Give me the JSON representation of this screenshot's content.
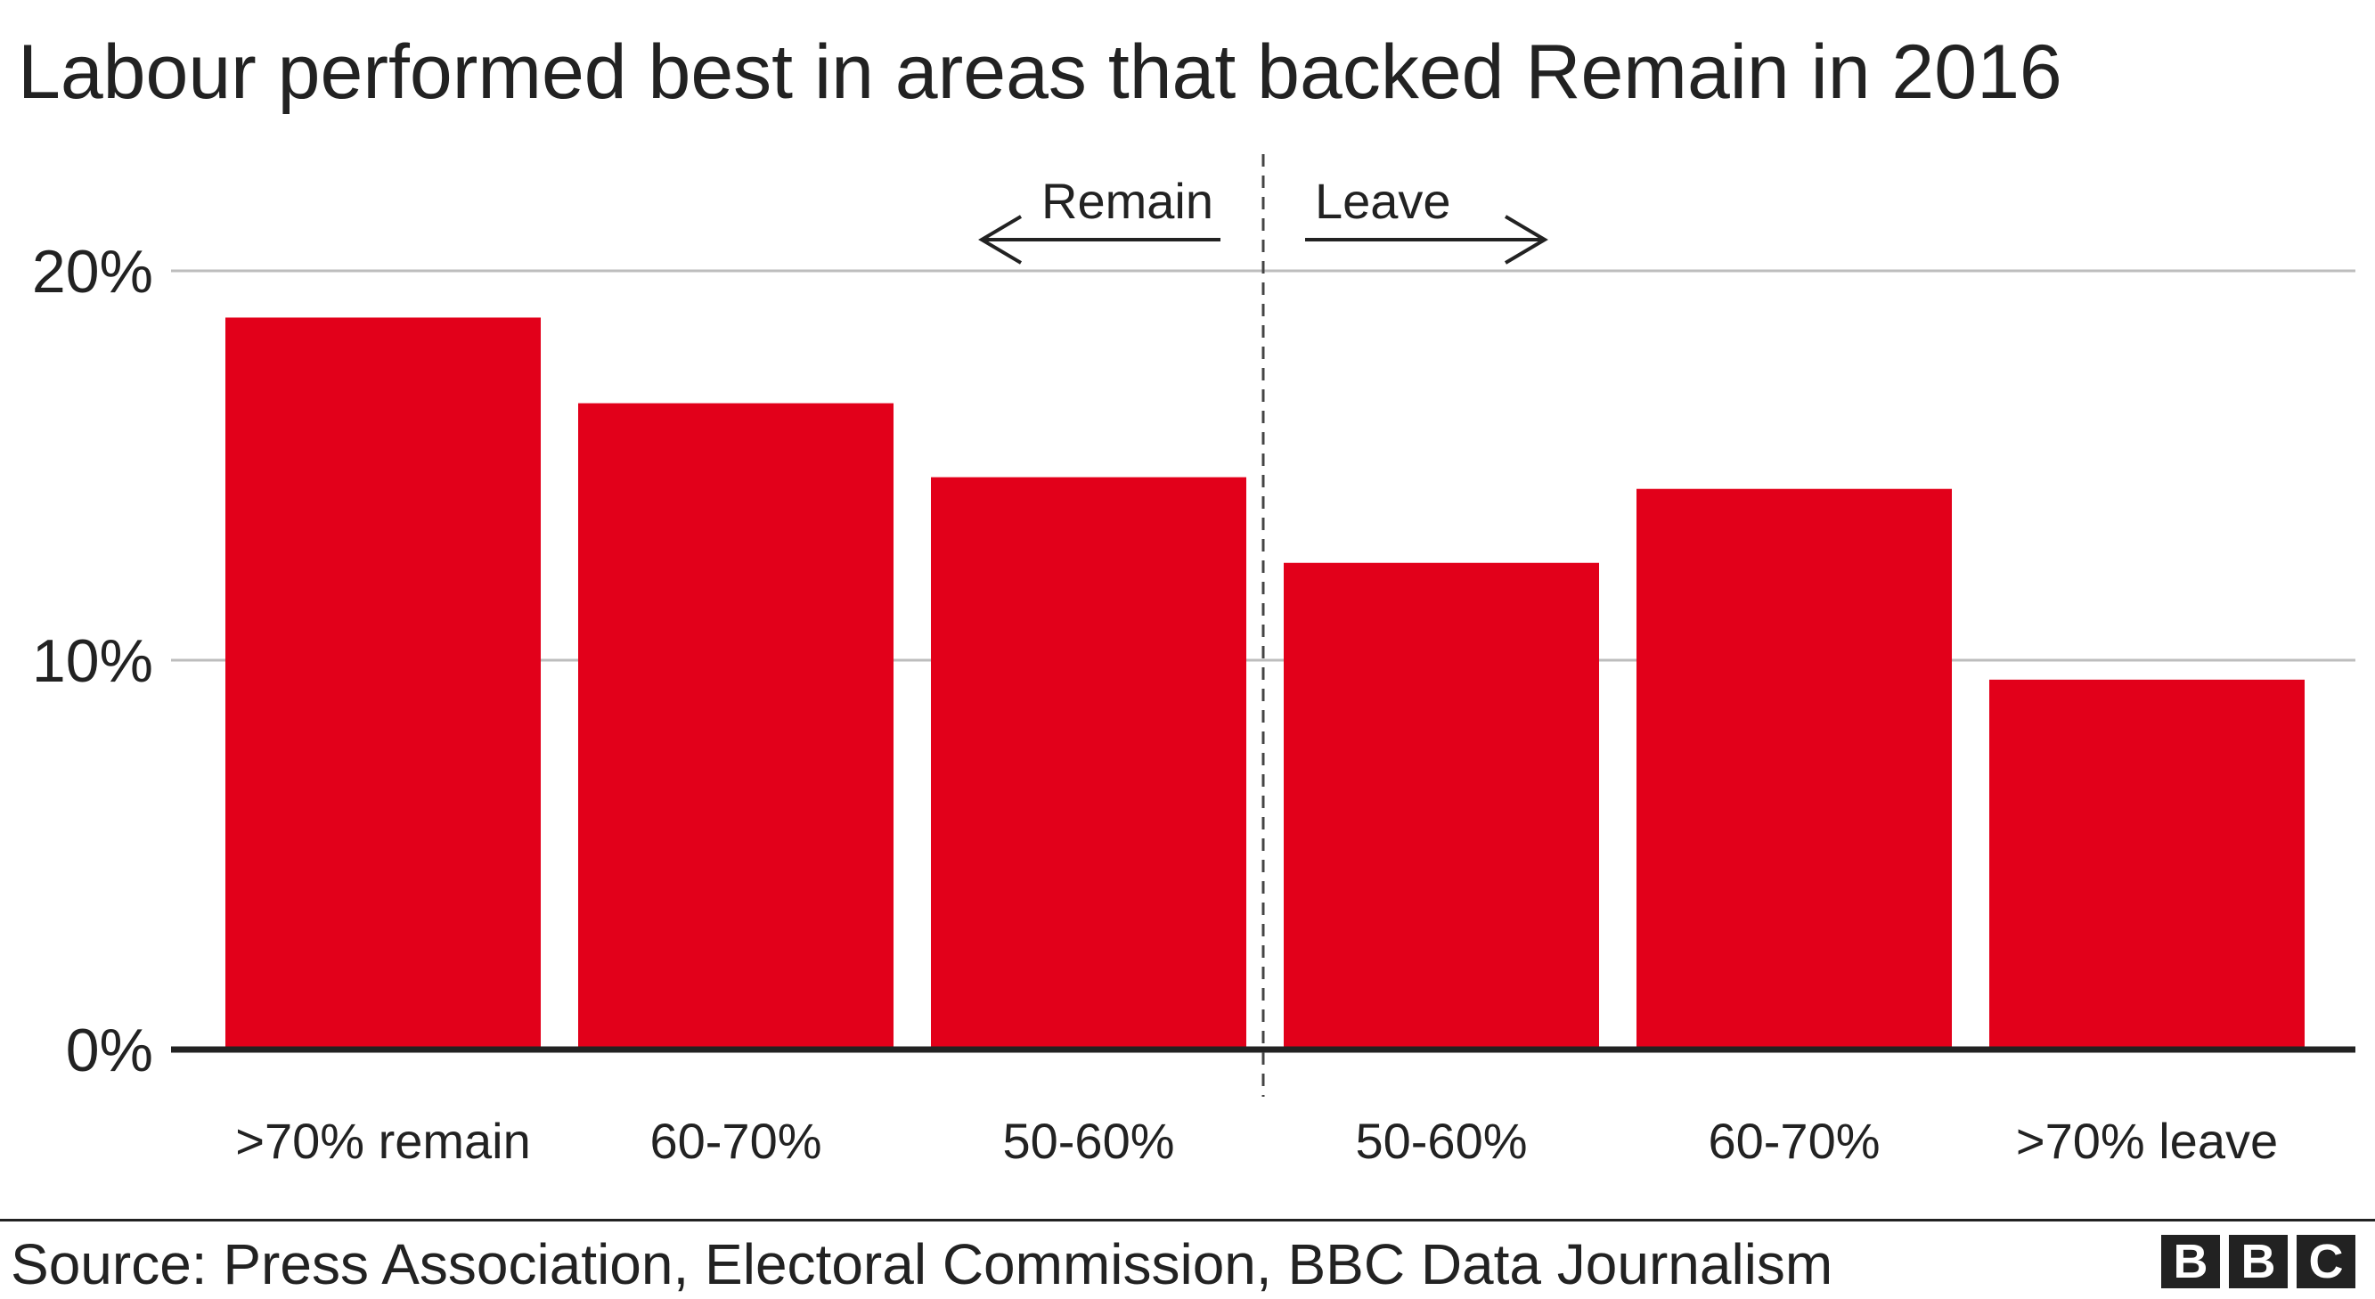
{
  "chart_data": {
    "type": "bar",
    "title": "Labour performed best in areas that backed Remain in 2016",
    "categories": [
      ">70% remain",
      "60-70%",
      "50-60%",
      "50-60%",
      "60-70%",
      ">70% leave"
    ],
    "values": [
      18.8,
      16.6,
      14.7,
      12.5,
      14.4,
      9.5
    ],
    "ylim": [
      0,
      20
    ],
    "yticks": [
      0,
      10,
      20
    ],
    "ytick_labels": [
      "0%",
      "10%",
      "20%"
    ],
    "grid": true,
    "bar_color": "#e2001a",
    "annotations": {
      "left": "Remain",
      "right": "Leave"
    },
    "xlabel": "",
    "ylabel": ""
  },
  "source": "Source: Press Association, Electoral Commission, BBC Data Journalism",
  "logo": [
    "B",
    "B",
    "C"
  ]
}
